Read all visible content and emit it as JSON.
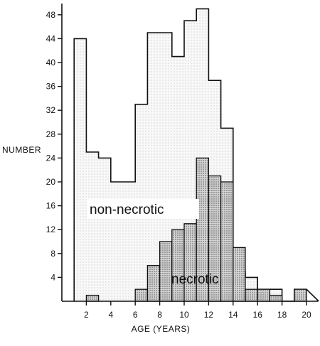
{
  "chart_data": {
    "type": "histogram",
    "xlabel": "AGE (YEARS)",
    "ylabel": "NUMBER",
    "xlim": [
      0,
      21
    ],
    "ylim": [
      0,
      50
    ],
    "x_ticks": [
      2,
      4,
      6,
      8,
      10,
      12,
      14,
      16,
      18,
      20
    ],
    "y_ticks": [
      4,
      8,
      12,
      16,
      20,
      24,
      28,
      32,
      36,
      40,
      44,
      48
    ],
    "bin_edges": [
      1,
      2,
      3,
      4,
      5,
      6,
      7,
      8,
      9,
      10,
      11,
      12,
      13,
      14,
      15,
      16,
      17,
      18,
      19,
      20
    ],
    "series": [
      {
        "name": "non-necrotic",
        "fill": "light-stipple",
        "values": [
          44,
          25,
          24,
          20,
          20,
          33,
          45,
          45,
          41,
          47,
          49,
          37,
          29,
          5,
          4,
          2,
          2,
          0,
          2
        ]
      },
      {
        "name": "necrotic",
        "fill": "dense-stipple",
        "values": [
          0,
          1,
          0,
          0,
          0,
          2,
          6,
          10,
          12,
          13,
          24,
          21,
          20,
          9,
          2,
          2,
          1,
          0,
          2
        ]
      }
    ],
    "colors": {
      "line": "#111111",
      "light_fill": "#f7f7f7",
      "dense_fill": "#c4c4c4",
      "background": "#ffffff"
    }
  }
}
